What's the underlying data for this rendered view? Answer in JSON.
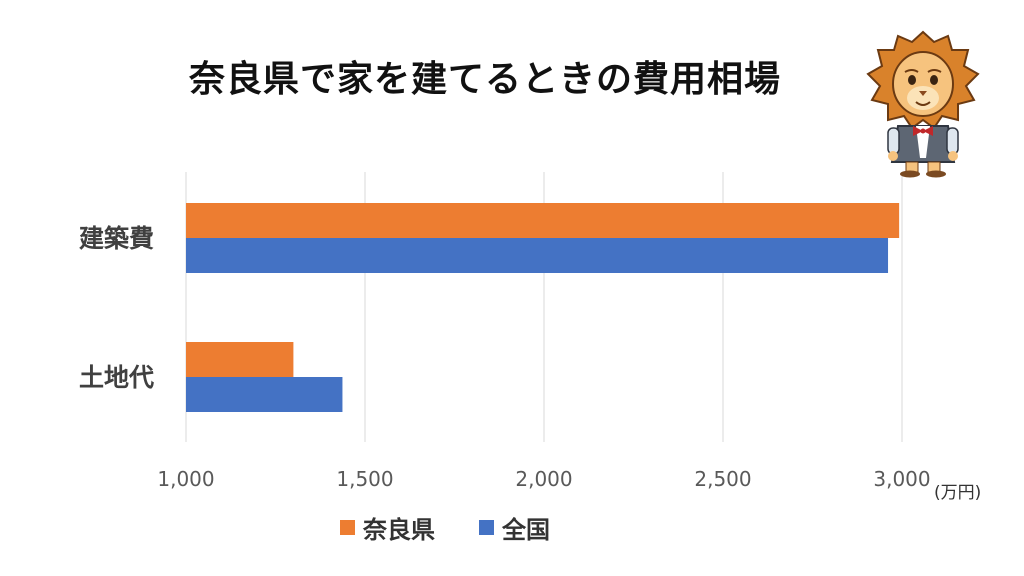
{
  "chart_data": {
    "type": "bar",
    "orientation": "horizontal",
    "title": "奈良県で家を建てるときの費用相場",
    "categories": [
      "建築費",
      "土地代"
    ],
    "series": [
      {
        "name": "奈良県",
        "color": "#ED7D31",
        "values": [
          2992,
          1300
        ]
      },
      {
        "name": "全国",
        "color": "#4472C4",
        "values": [
          2961,
          1437
        ]
      }
    ],
    "xlim": [
      1000,
      3000
    ],
    "xticks": [
      1000,
      1500,
      2000,
      2500,
      3000
    ],
    "xtick_labels": [
      "1,000",
      "1,500",
      "2,000",
      "2,500",
      "3,000"
    ],
    "unit": "(万円)",
    "grid": true,
    "legend_position": "bottom"
  },
  "colors": {
    "gridline": "#d9d9d9",
    "tick_text": "#595959",
    "category_text": "#404040"
  }
}
